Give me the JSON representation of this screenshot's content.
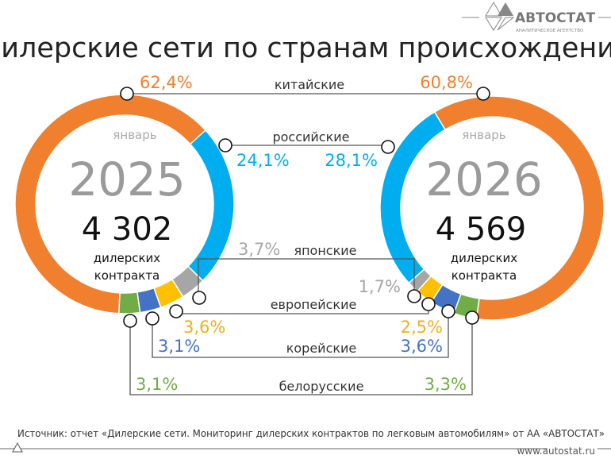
{
  "title": "Дилерские сети по странам происхождения",
  "logo": {
    "name": "АВТОСТАТ",
    "tagline": "АНАЛИТИЧЕСКОЕ АГЕНТСТВО"
  },
  "footer": {
    "source": "Источник: отчет «Дилерские сети. Мониторинг дилерских контрактов по легковым автомобилям» от АА «АВТОСТАТ»",
    "site": "www.autostat.ru"
  },
  "chart_data": [
    {
      "type": "pie",
      "donut": true,
      "month": "январь",
      "year": "2025",
      "total": "4 302",
      "total_label_1": "дилерских",
      "total_label_2": "контракта",
      "categories": [
        "китайские",
        "российские",
        "японские",
        "европейские",
        "корейские",
        "белорусские"
      ],
      "values": [
        62.4,
        24.1,
        3.7,
        3.6,
        3.1,
        3.1
      ],
      "labels": [
        "62,4%",
        "24,1%",
        "3,7%",
        "3,6%",
        "3,1%",
        "3,1%"
      ]
    },
    {
      "type": "pie",
      "donut": true,
      "month": "январь",
      "year": "2026",
      "total": "4 569",
      "total_label_1": "дилерских",
      "total_label_2": "контракта",
      "categories": [
        "китайские",
        "российские",
        "японские",
        "европейские",
        "корейские",
        "белорусские"
      ],
      "values": [
        60.8,
        28.1,
        1.7,
        2.5,
        3.6,
        3.3
      ],
      "labels": [
        "60,8%",
        "28,1%",
        "1,7%",
        "2,5%",
        "3,6%",
        "3,3%"
      ]
    }
  ],
  "colors": [
    "#F07F2E",
    "#00AEEF",
    "#A6A6A6",
    "#FFC000",
    "#4472C4",
    "#70AD47"
  ],
  "label_colors": [
    "#F07F2E",
    "#00AEEF",
    "#A6A6A6",
    "#E8B21E",
    "#4472C4",
    "#70AD47"
  ]
}
